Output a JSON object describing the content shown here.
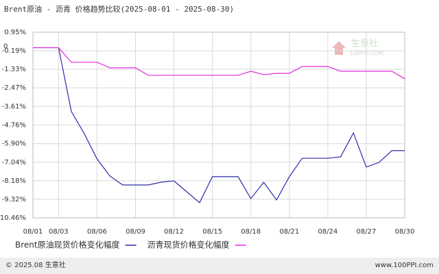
{
  "chart_data": {
    "type": "line",
    "title": "Brent原油 - 沥青 价格趋势比较(2025-08-01 - 2025-08-30)",
    "categories": [
      "08/01",
      null,
      "08/03",
      null,
      null,
      "08/06",
      null,
      null,
      "08/09",
      null,
      null,
      "08/12",
      null,
      null,
      "08/15",
      null,
      null,
      "08/18",
      null,
      null,
      "08/21",
      null,
      null,
      "08/24",
      null,
      null,
      "08/27",
      null,
      null,
      "08/30"
    ],
    "series": [
      {
        "name": "Brent原油现货价格变化幅度",
        "color": "#2b2ba8",
        "values": [
          0,
          0,
          0,
          -3.93,
          -5.28,
          -6.84,
          -7.89,
          -8.44,
          -8.44,
          -8.44,
          -8.27,
          -8.19,
          -8.86,
          -9.53,
          -7.93,
          -7.93,
          -7.93,
          -9.28,
          -8.27,
          -9.36,
          -7.93,
          -6.8,
          -6.8,
          -6.8,
          -6.71,
          -5.24,
          -7.34,
          -7.05,
          -6.33,
          -6.33
        ]
      },
      {
        "name": "沥青现货价格变化幅度",
        "color": "#e028e0",
        "values": [
          0,
          0,
          0,
          -0.9,
          -0.9,
          -0.9,
          -1.24,
          -1.24,
          -1.24,
          -1.7,
          -1.7,
          -1.7,
          -1.7,
          -1.7,
          -1.7,
          -1.7,
          -1.7,
          -1.45,
          -1.66,
          -1.58,
          -1.58,
          -1.16,
          -1.16,
          -1.16,
          -1.45,
          -1.45,
          -1.45,
          -1.45,
          -1.45,
          -1.91
        ]
      }
    ],
    "ylim": [
      -10.46,
      0.95
    ],
    "yticks": [
      {
        "value": 0.95,
        "label": "0.95%"
      },
      {
        "value": -0.19,
        "label": "-0.19%"
      },
      {
        "value": -1.33,
        "label": "-1.33%"
      },
      {
        "value": -2.47,
        "label": "-2.47%"
      },
      {
        "value": -3.61,
        "label": "-3.61%"
      },
      {
        "value": -4.76,
        "label": "-4.76%"
      },
      {
        "value": -5.9,
        "label": "-5.90%"
      },
      {
        "value": -7.04,
        "label": "-7.04%"
      },
      {
        "value": -8.18,
        "label": "-8.18%"
      },
      {
        "value": -9.32,
        "label": "-9.32%"
      },
      {
        "value": -10.46,
        "label": "-10.46%"
      }
    ],
    "zero_label": {
      "value": 0,
      "label": "0"
    },
    "grid": true,
    "watermark": {
      "name": "生意社",
      "site": "100PPI.COM"
    },
    "footer": {
      "left": "© 2025.08 生意社",
      "right": "www.100PPI.com"
    }
  }
}
